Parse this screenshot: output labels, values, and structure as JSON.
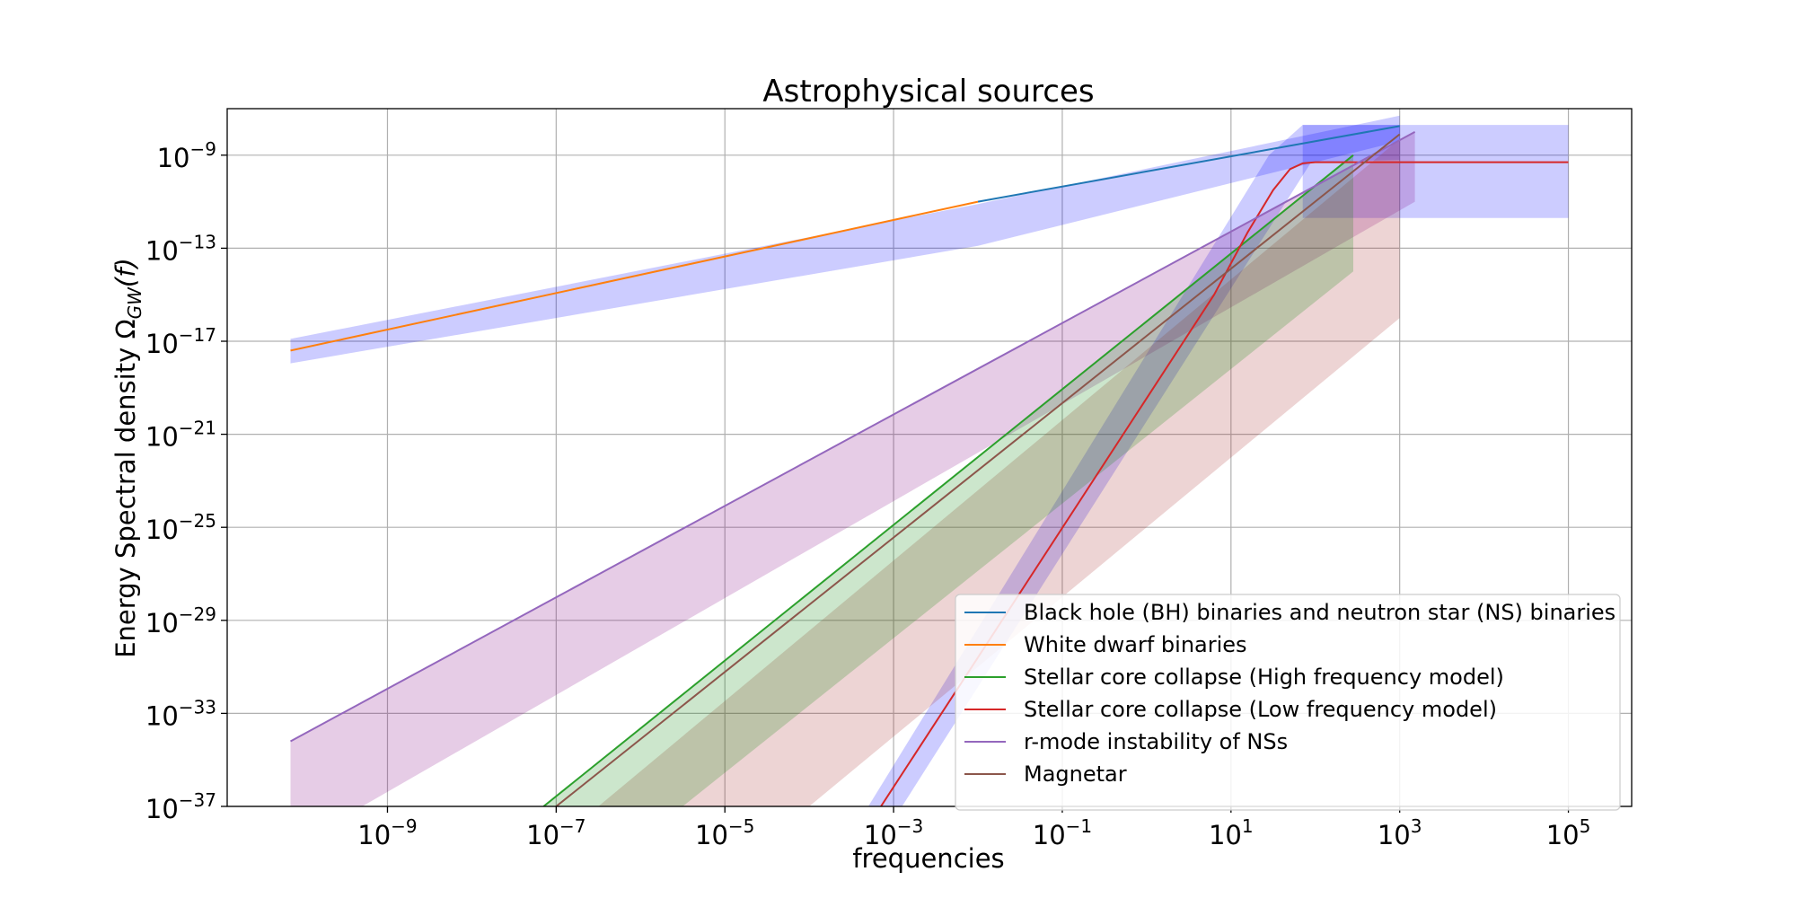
{
  "chart_data": {
    "type": "line",
    "title": "Astrophysical sources",
    "xlabel": "frequencies",
    "ylabel": "Energy Spectral density Ω",
    "ylabel_sub": "GW",
    "ylabel_arg": "(f)",
    "x_scale": "log",
    "y_scale": "log",
    "xlim_exp": [
      -10.9,
      5.75
    ],
    "ylim_exp": [
      -37,
      -7.0
    ],
    "x_ticks": [
      {
        "base": "10",
        "exp": "−9",
        "value_exp": -9
      },
      {
        "base": "10",
        "exp": "−7",
        "value_exp": -7
      },
      {
        "base": "10",
        "exp": "−5",
        "value_exp": -5
      },
      {
        "base": "10",
        "exp": "−3",
        "value_exp": -3
      },
      {
        "base": "10",
        "exp": "−1",
        "value_exp": -1
      },
      {
        "base": "10",
        "exp": "1",
        "value_exp": 1
      },
      {
        "base": "10",
        "exp": "3",
        "value_exp": 3
      },
      {
        "base": "10",
        "exp": "5",
        "value_exp": 5
      }
    ],
    "y_ticks": [
      {
        "base": "10",
        "exp": "−9",
        "value_exp": -9
      },
      {
        "base": "10",
        "exp": "−13",
        "value_exp": -13
      },
      {
        "base": "10",
        "exp": "−17",
        "value_exp": -17
      },
      {
        "base": "10",
        "exp": "−21",
        "value_exp": -21
      },
      {
        "base": "10",
        "exp": "−25",
        "value_exp": -25
      },
      {
        "base": "10",
        "exp": "−29",
        "value_exp": -29
      },
      {
        "base": "10",
        "exp": "−33",
        "value_exp": -33
      },
      {
        "base": "10",
        "exp": "−37",
        "value_exp": -37
      }
    ],
    "grid": true,
    "legend_position": "lower-right",
    "bands": [
      {
        "color": "#0000ff",
        "opacity": 0.2,
        "points": [
          [
            -10.15,
            -16.9
          ],
          [
            -2.0,
            -11.1
          ],
          [
            3.0,
            -7.3
          ],
          [
            3.0,
            -8.4
          ],
          [
            -2.0,
            -12.9
          ],
          [
            -10.15,
            -17.95
          ]
        ]
      },
      {
        "color": "#0000ff",
        "opacity": 0.2,
        "points": [
          [
            -3.3,
            -37
          ],
          [
            1.45,
            -9.0
          ],
          [
            1.85,
            -7.7
          ],
          [
            3.0,
            -7.7
          ],
          [
            3.0,
            -9.2
          ],
          [
            1.95,
            -9.3
          ],
          [
            -2.9,
            -37
          ]
        ]
      },
      {
        "color": "#0000ff",
        "opacity": 0.2,
        "points": [
          [
            1.85,
            -7.7
          ],
          [
            5.0,
            -7.7
          ],
          [
            5.0,
            -11.7
          ],
          [
            1.85,
            -11.7
          ]
        ]
      },
      {
        "color": "#800080",
        "opacity": 0.2,
        "points": [
          [
            -10.15,
            -34.2
          ],
          [
            3.18,
            -8.0
          ],
          [
            3.18,
            -11.0
          ],
          [
            -9.3,
            -37
          ],
          [
            -10.15,
            -37
          ]
        ]
      },
      {
        "color": "#a52a2a",
        "opacity": 0.2,
        "points": [
          [
            -6.5,
            -37
          ],
          [
            3.0,
            -8.3
          ],
          [
            3.0,
            -16.0
          ],
          [
            -4.0,
            -37
          ]
        ]
      },
      {
        "color": "#008000",
        "opacity": 0.2,
        "points": [
          [
            -7.15,
            -37
          ],
          [
            2.45,
            -9.0
          ],
          [
            2.45,
            -14.0
          ],
          [
            -5.5,
            -37
          ]
        ]
      }
    ],
    "series": [
      {
        "name": "Black hole (BH) binaries and neutron star (NS) binaries",
        "color": "#1f77b4",
        "x_exp": [
          -2.0,
          3.0
        ],
        "y_exp": [
          -11.0,
          -7.75
        ]
      },
      {
        "name": "White dwarf binaries",
        "color": "#ff7f0e",
        "x_exp": [
          -10.15,
          -2.0
        ],
        "y_exp": [
          -17.4,
          -11.0
        ]
      },
      {
        "name": "Stellar core collapse (High frequency model)",
        "color": "#2ca02c",
        "x_exp": [
          -7.15,
          2.45
        ],
        "y_exp": [
          -37,
          -9.0
        ]
      },
      {
        "name": "Stellar core collapse (Low frequency model)",
        "color": "#d62728",
        "x_exp": [
          -3.15,
          0.8,
          1.2,
          1.5,
          1.7,
          1.85,
          2.0,
          5.0
        ],
        "y_exp": [
          -37,
          -15.0,
          -12.3,
          -10.5,
          -9.6,
          -9.35,
          -9.3,
          -9.3
        ]
      },
      {
        "name": "r-mode instability of NSs",
        "color": "#9467bd",
        "x_exp": [
          -10.15,
          3.18
        ],
        "y_exp": [
          -34.2,
          -8.0
        ]
      },
      {
        "name": "Magnetar",
        "color": "#8c564b",
        "x_exp": [
          -7.0,
          3.0
        ],
        "y_exp": [
          -37,
          -8.1
        ]
      }
    ]
  }
}
